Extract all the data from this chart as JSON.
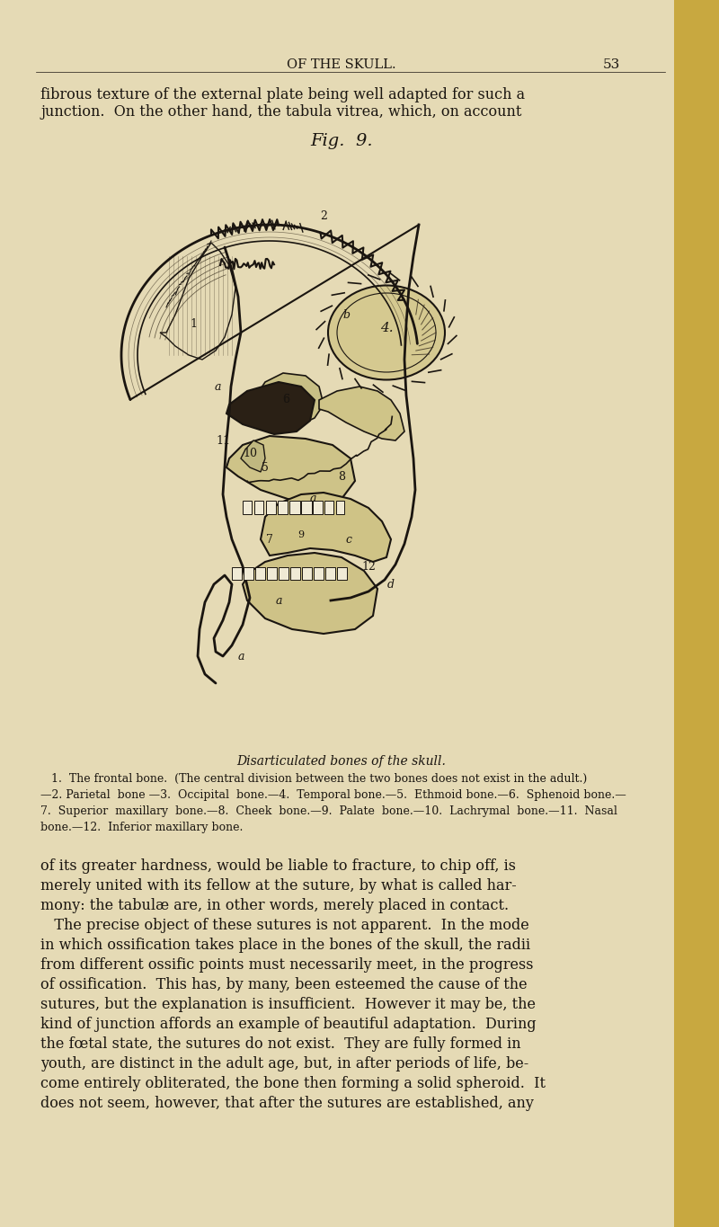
{
  "background_color": "#e8dfc0",
  "page_bg": "#e5dbb8",
  "text_color": "#1a1510",
  "header_text": "OF THE SKULL.",
  "header_page_num": "53",
  "top_text_line1": "fibrous texture of the external plate being well adapted for such a",
  "top_text_line2": "junction.  On the other hand, the tabula vitrea, which, on account",
  "fig_title": "Fig.  9.",
  "caption_italic": "Disarticulated bones of the skull.",
  "caption_line1": "   1.  The frontal bone.  (The central division between the two bones does not exist in the adult.)",
  "caption_line2": "—2. Parietal  bone —3.  Occipital  bone.—4.  Temporal bone.—5.  Ethmoid bone.—6.  Sphenoid bone.—",
  "caption_line3": "7.  Superior  maxillary  bone.—8.  Cheek  bone.—9.  Palate  bone.—10.  Lachrymal  bone.—11.  Nasal",
  "caption_line4": "bone.—12.  Inferior maxillary bone.",
  "body_text_lines": [
    "of its greater hardness, would be liable to fracture, to chip off, is",
    "merely united with its fellow at the suture, by what is called har-",
    "mony: the tabulæ are, in other words, merely placed in contact.",
    "   The precise object of these sutures is not apparent.  In the mode",
    "in which ossification takes place in the bones of the skull, the radii",
    "from different ossific points must necessarily meet, in the progress",
    "of ossification.  This has, by many, been esteemed the cause of the",
    "sutures, but the explanation is insufficient.  However it may be, the",
    "kind of junction affords an example of beautiful adaptation.  During",
    "the fœtal state, the sutures do not exist.  They are fully formed in",
    "youth, are distinct in the adult age, but, in after periods of life, be-",
    "come entirely obliterated, the bone then forming a solid spheroid.  It",
    "does not seem, however, that after the sutures are established, any"
  ]
}
